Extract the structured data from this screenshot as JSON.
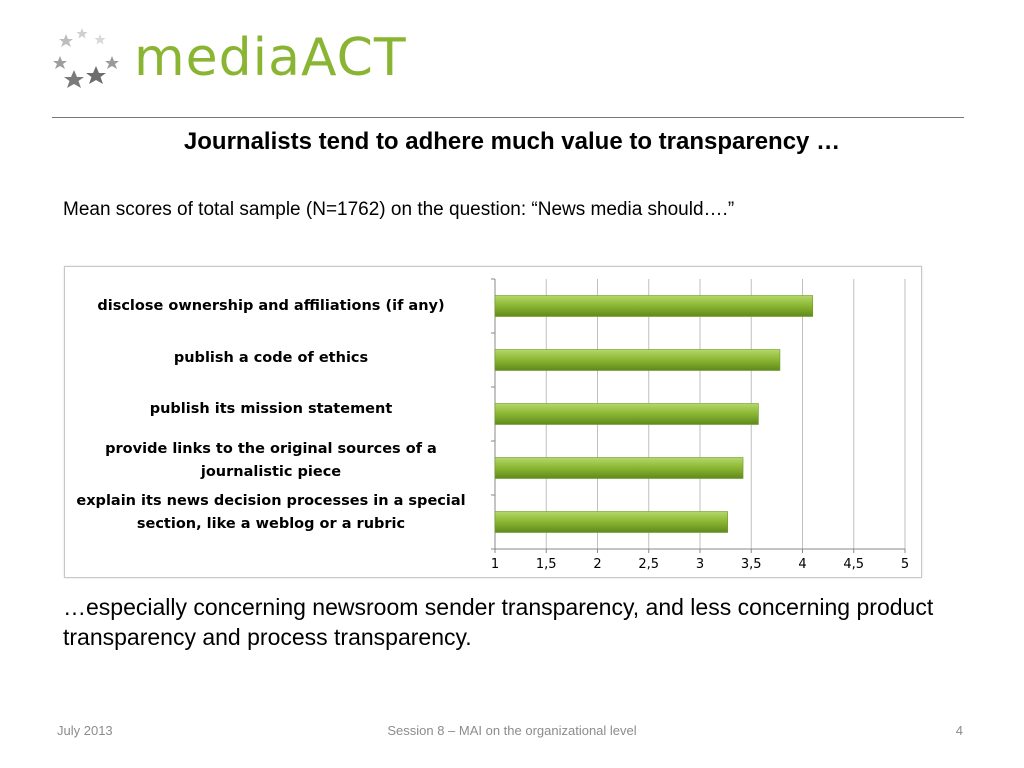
{
  "logo": {
    "text": "mediaACT"
  },
  "slide": {
    "title": "Journalists tend to adhere much value to transparency …",
    "subtitle": "Mean scores of total sample (N=1762) on the question: “News media should….”",
    "body": "…especially concerning newsroom sender transparency, and less concerning product transparency and process transparency."
  },
  "footer": {
    "date": "July 2013",
    "session": "Session 8 – MAI on the organizational level",
    "page": "4"
  },
  "colors": {
    "bar": "#8ab532",
    "accent": "#8ab532",
    "grid": "#bfbfbf"
  },
  "chart_data": {
    "type": "bar",
    "orientation": "horizontal",
    "categories": [
      "disclose ownership and affiliations (if any)",
      "publish a code of ethics",
      "publish its mission statement",
      "provide links to the original sources of a journalistic piece",
      "explain its news decision processes in a special section, like a weblog or a rubric"
    ],
    "values": [
      4.1,
      3.78,
      3.57,
      3.42,
      3.27
    ],
    "xlim": [
      1,
      5
    ],
    "xticks": [
      "1",
      "1,5",
      "2",
      "2,5",
      "3",
      "3,5",
      "4",
      "4,5",
      "5"
    ],
    "tick_values": [
      1,
      1.5,
      2,
      2.5,
      3,
      3.5,
      4,
      4.5,
      5
    ],
    "grid": true,
    "title": "",
    "xlabel": "",
    "ylabel": ""
  }
}
